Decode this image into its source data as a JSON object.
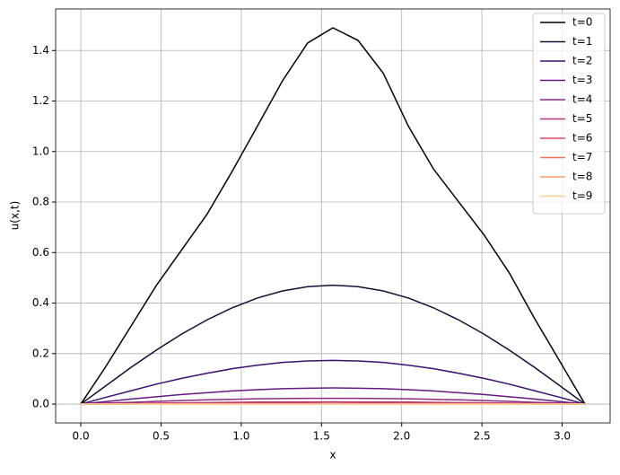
{
  "chart_data": {
    "type": "line",
    "xlabel": "x",
    "ylabel": "u(x,t)",
    "x": [
      0,
      0.157,
      0.314,
      0.471,
      0.628,
      0.785,
      0.942,
      1.1,
      1.257,
      1.414,
      1.571,
      1.728,
      1.885,
      2.042,
      2.199,
      2.356,
      2.513,
      2.67,
      2.827,
      2.985,
      3.142
    ],
    "series": [
      {
        "name": "t=0",
        "color": "#000004",
        "values": [
          0,
          0.15,
          0.31,
          0.47,
          0.61,
          0.75,
          0.92,
          1.1,
          1.28,
          1.43,
          1.49,
          1.44,
          1.31,
          1.1,
          0.93,
          0.8,
          0.67,
          0.52,
          0.34,
          0.17,
          0
        ]
      },
      {
        "name": "t=1",
        "color": "#140e36",
        "values": [
          0,
          0.073,
          0.146,
          0.214,
          0.277,
          0.333,
          0.381,
          0.42,
          0.448,
          0.465,
          0.471,
          0.465,
          0.448,
          0.42,
          0.381,
          0.333,
          0.277,
          0.214,
          0.146,
          0.073,
          0
        ]
      },
      {
        "name": "t=2",
        "color": "#3b0f70",
        "values": [
          0,
          0.027,
          0.053,
          0.079,
          0.102,
          0.122,
          0.14,
          0.154,
          0.165,
          0.171,
          0.173,
          0.171,
          0.165,
          0.154,
          0.14,
          0.122,
          0.102,
          0.079,
          0.053,
          0.027,
          0
        ]
      },
      {
        "name": "t=3",
        "color": "#641a80",
        "values": [
          0,
          0.01,
          0.02,
          0.029,
          0.038,
          0.045,
          0.052,
          0.057,
          0.061,
          0.063,
          0.064,
          0.063,
          0.061,
          0.057,
          0.052,
          0.045,
          0.038,
          0.029,
          0.02,
          0.01,
          0
        ]
      },
      {
        "name": "t=4",
        "color": "#8c2981",
        "values": [
          0,
          0.004,
          0.007,
          0.011,
          0.014,
          0.017,
          0.019,
          0.021,
          0.022,
          0.023,
          0.023,
          0.023,
          0.022,
          0.021,
          0.019,
          0.017,
          0.014,
          0.011,
          0.007,
          0.004,
          0
        ]
      },
      {
        "name": "t=5",
        "color": "#b73779",
        "values": [
          0,
          0.001,
          0.003,
          0.004,
          0.005,
          0.006,
          0.007,
          0.008,
          0.008,
          0.008,
          0.009,
          0.008,
          0.008,
          0.008,
          0.007,
          0.006,
          0.005,
          0.004,
          0.003,
          0.001,
          0
        ]
      },
      {
        "name": "t=6",
        "color": "#de4968",
        "values": [
          0,
          0,
          0.001,
          0.001,
          0.002,
          0.002,
          0.003,
          0.003,
          0.003,
          0.003,
          0.003,
          0.003,
          0.003,
          0.003,
          0.003,
          0.002,
          0.002,
          0.001,
          0.001,
          0,
          0
        ]
      },
      {
        "name": "t=7",
        "color": "#f7705c",
        "values": [
          0,
          0,
          0,
          0.001,
          0.001,
          0.001,
          0.001,
          0.001,
          0.001,
          0.001,
          0.001,
          0.001,
          0.001,
          0.001,
          0.001,
          0.001,
          0.001,
          0.001,
          0,
          0,
          0
        ]
      },
      {
        "name": "t=8",
        "color": "#fe9f6d",
        "values": [
          0,
          0,
          0,
          0,
          0,
          0,
          0,
          0,
          0,
          0,
          0,
          0,
          0,
          0,
          0,
          0,
          0,
          0,
          0,
          0,
          0
        ]
      },
      {
        "name": "t=9",
        "color": "#fecf92",
        "values": [
          0,
          0,
          0,
          0,
          0,
          0,
          0,
          0,
          0,
          0,
          0,
          0,
          0,
          0,
          0,
          0,
          0,
          0,
          0,
          0,
          0
        ]
      }
    ],
    "xlim": [
      -0.157,
      3.299
    ],
    "ylim": [
      -0.0745,
      1.5645
    ],
    "xticks": [
      {
        "value": 0,
        "label": "0.0"
      },
      {
        "value": 0.5,
        "label": "0.5"
      },
      {
        "value": 1,
        "label": "1.0"
      },
      {
        "value": 1.5,
        "label": "1.5"
      },
      {
        "value": 2,
        "label": "2.0"
      },
      {
        "value": 2.5,
        "label": "2.5"
      },
      {
        "value": 3,
        "label": "3.0"
      }
    ],
    "yticks": [
      {
        "value": 0,
        "label": "0.0"
      },
      {
        "value": 0.2,
        "label": "0.2"
      },
      {
        "value": 0.4,
        "label": "0.4"
      },
      {
        "value": 0.6,
        "label": "0.6"
      },
      {
        "value": 0.8,
        "label": "0.8"
      },
      {
        "value": 1,
        "label": "1.0"
      },
      {
        "value": 1.2,
        "label": "1.2"
      },
      {
        "value": 1.4,
        "label": "1.4"
      }
    ],
    "grid": true,
    "legend": "upper right"
  }
}
